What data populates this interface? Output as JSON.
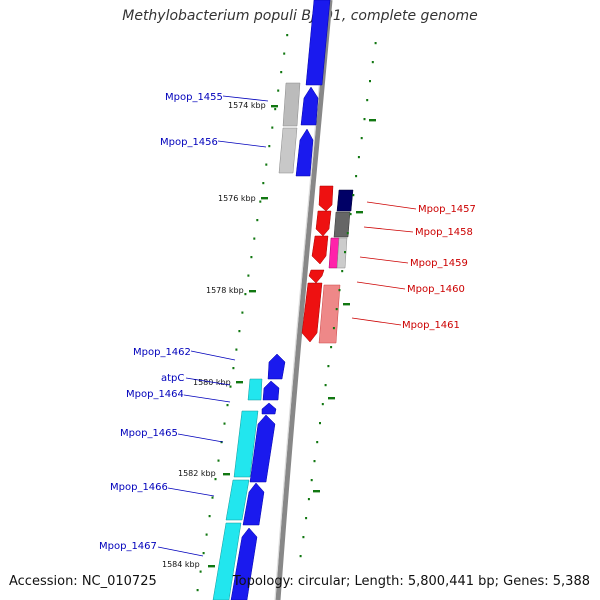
{
  "title": "Methylobacterium populi BJ001, complete genome",
  "accession_text": "Accession: NC_010725",
  "summary_text": "Topology: circular; Length: 5,800,441 bp; Genes: 5,388",
  "colors": {
    "forward_label": "#0000bb",
    "reverse_label": "#cc0000",
    "tick": "#117711",
    "backbone": "#888888"
  },
  "scale_labels": [
    "1574 kbp",
    "1576 kbp",
    "1578 kbp",
    "1580 kbp",
    "1582 kbp",
    "1584 kbp"
  ],
  "forward_genes": [
    {
      "label": "Mpop_1455"
    },
    {
      "label": "Mpop_1456"
    },
    {
      "label": "Mpop_1462"
    },
    {
      "label": "atpC"
    },
    {
      "label": "Mpop_1464"
    },
    {
      "label": "Mpop_1465"
    },
    {
      "label": "Mpop_1466"
    },
    {
      "label": "Mpop_1467"
    }
  ],
  "reverse_genes": [
    {
      "label": "Mpop_1457"
    },
    {
      "label": "Mpop_1458"
    },
    {
      "label": "Mpop_1459"
    },
    {
      "label": "Mpop_1460"
    },
    {
      "label": "Mpop_1461"
    }
  ]
}
